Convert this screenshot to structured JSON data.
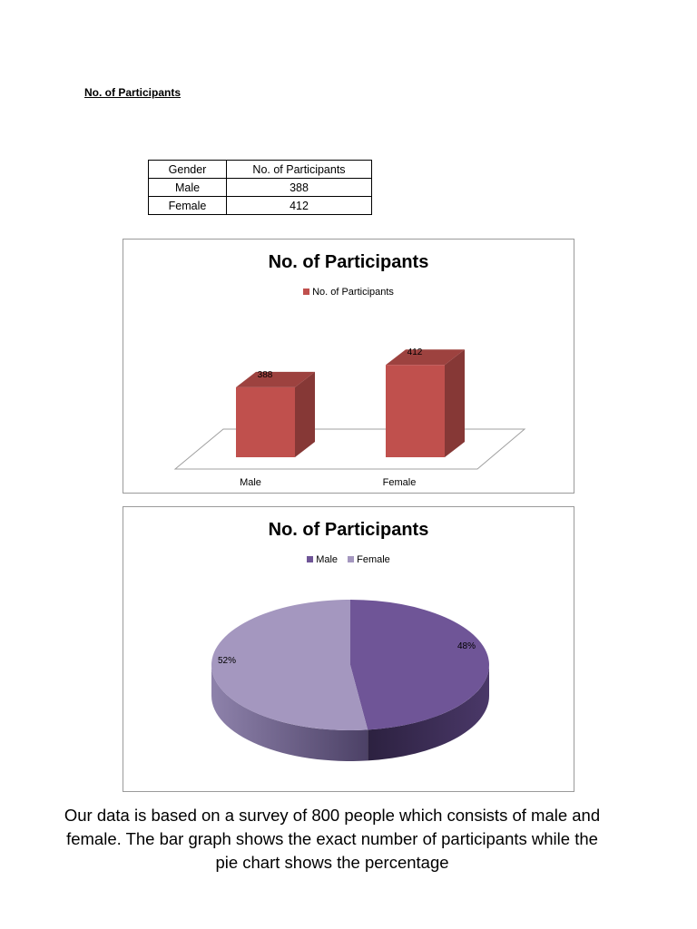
{
  "heading": "No. of Participants",
  "table": {
    "headers": [
      "Gender",
      "No. of Participants"
    ],
    "rows": [
      [
        "Male",
        "388"
      ],
      [
        "Female",
        "412"
      ]
    ]
  },
  "chart_data": [
    {
      "type": "bar",
      "title": "No. of Participants",
      "categories": [
        "Male",
        "Female"
      ],
      "series": [
        {
          "name": "No. of Participants",
          "values": [
            388,
            412
          ],
          "color": "#c0504d"
        }
      ],
      "data_labels": [
        "388",
        "412"
      ],
      "legend": "top",
      "grid": false,
      "three_d": true,
      "ylim": [
        0,
        420
      ]
    },
    {
      "type": "pie",
      "title": "No. of Participants",
      "labels": [
        "Male",
        "Female"
      ],
      "values": [
        48,
        52
      ],
      "data_labels": [
        "48%",
        "52%"
      ],
      "colors": [
        "#6f5597",
        "#a497bf"
      ],
      "legend": "top",
      "three_d": true
    }
  ],
  "caption": "Our data is based on a survey of 800 people which consists of male and female. The bar graph shows the exact number of participants while the pie chart shows the percentage"
}
